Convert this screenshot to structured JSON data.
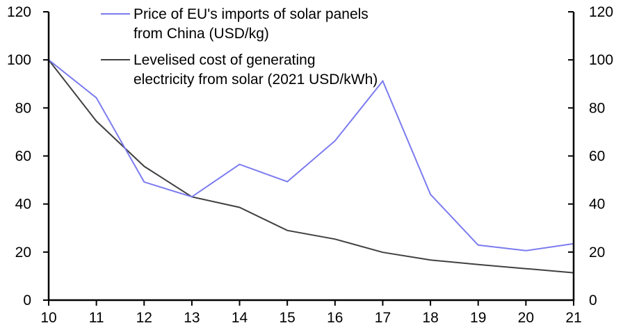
{
  "chart_data": {
    "type": "line",
    "title": "",
    "xlabel": "",
    "ylabel": "",
    "y2label": "",
    "x": [
      "10",
      "11",
      "12",
      "13",
      "14",
      "15",
      "16",
      "17",
      "18",
      "19",
      "20",
      "21"
    ],
    "ylim": [
      0,
      120
    ],
    "y2lim": [
      0,
      120
    ],
    "yticks": [
      0,
      20,
      40,
      60,
      80,
      100,
      120
    ],
    "y2ticks": [
      0,
      20,
      40,
      60,
      80,
      100,
      120
    ],
    "grid": false,
    "legend_position": "top-center",
    "series": [
      {
        "name": "Price of EU's imports of solar panels from China (USD/kg)",
        "legend_lines": [
          "Price of EU's imports of solar panels",
          "from China (USD/kg)"
        ],
        "color": "#7b7bf0",
        "values": [
          100,
          84.2,
          49.2,
          43.0,
          56.5,
          49.3,
          66.3,
          91.2,
          44.0,
          22.9,
          20.6,
          23.5
        ]
      },
      {
        "name": "Levelised cost of generating electricity from solar (2021 USD/kWh)",
        "legend_lines": [
          "Levelised cost of generating",
          "electricity from solar (2021 USD/kWh)"
        ],
        "color": "#404040",
        "values": [
          100,
          74.5,
          55.7,
          43.0,
          38.6,
          29.0,
          25.4,
          19.9,
          16.7,
          14.8,
          13.1,
          11.4
        ]
      }
    ]
  }
}
